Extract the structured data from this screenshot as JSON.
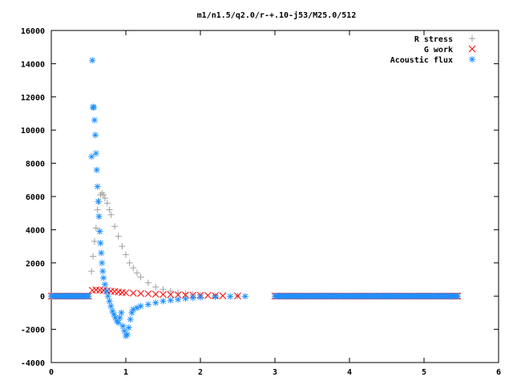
{
  "chart_data": {
    "type": "scatter",
    "title": "m1/n1.5/q2.0/r-+.10-j53/M25.0/512",
    "xlabel": "",
    "ylabel": "",
    "xlim": [
      0,
      6
    ],
    "ylim": [
      -4000,
      16000
    ],
    "x_ticks": [
      "0",
      "1",
      "2",
      "3",
      "4",
      "5",
      "6"
    ],
    "y_ticks": [
      "-4000",
      "-2000",
      "0",
      "2000",
      "4000",
      "6000",
      "8000",
      "10000",
      "12000",
      "14000",
      "16000"
    ],
    "grid": false,
    "legend_position": "top-right",
    "series": [
      {
        "name": "R stress",
        "marker": "plus",
        "color": "#a0a0a0",
        "points": [
          [
            0.0,
            0
          ],
          [
            0.1,
            0
          ],
          [
            0.2,
            0
          ],
          [
            0.3,
            0
          ],
          [
            0.4,
            0
          ],
          [
            0.5,
            0
          ],
          [
            0.54,
            1500
          ],
          [
            0.56,
            2400
          ],
          [
            0.58,
            3300
          ],
          [
            0.6,
            4100
          ],
          [
            0.62,
            5200
          ],
          [
            0.64,
            5700
          ],
          [
            0.66,
            6100
          ],
          [
            0.68,
            6200
          ],
          [
            0.7,
            6100
          ],
          [
            0.72,
            5900
          ],
          [
            0.75,
            5600
          ],
          [
            0.78,
            5200
          ],
          [
            0.8,
            4900
          ],
          [
            0.85,
            4200
          ],
          [
            0.9,
            3600
          ],
          [
            0.95,
            3000
          ],
          [
            1.0,
            2500
          ],
          [
            1.05,
            2000
          ],
          [
            1.1,
            1700
          ],
          [
            1.15,
            1400
          ],
          [
            1.2,
            1150
          ],
          [
            1.3,
            800
          ],
          [
            1.4,
            550
          ],
          [
            1.5,
            400
          ],
          [
            1.6,
            300
          ],
          [
            1.7,
            200
          ],
          [
            1.8,
            150
          ],
          [
            1.9,
            100
          ],
          [
            2.0,
            70
          ],
          [
            2.2,
            30
          ],
          [
            2.5,
            10
          ],
          [
            3.0,
            0
          ],
          [
            3.5,
            0
          ],
          [
            4.0,
            0
          ],
          [
            4.5,
            0
          ],
          [
            5.0,
            0
          ],
          [
            5.45,
            0
          ]
        ]
      },
      {
        "name": "G work",
        "marker": "cross",
        "color": "#ff0000",
        "points": [
          [
            0.0,
            0
          ],
          [
            0.2,
            0
          ],
          [
            0.4,
            0
          ],
          [
            0.5,
            0
          ],
          [
            0.55,
            350
          ],
          [
            0.6,
            380
          ],
          [
            0.65,
            360
          ],
          [
            0.7,
            340
          ],
          [
            0.75,
            320
          ],
          [
            0.8,
            300
          ],
          [
            0.85,
            280
          ],
          [
            0.9,
            250
          ],
          [
            0.95,
            220
          ],
          [
            1.0,
            200
          ],
          [
            1.1,
            180
          ],
          [
            1.2,
            160
          ],
          [
            1.3,
            140
          ],
          [
            1.4,
            120
          ],
          [
            1.5,
            100
          ],
          [
            1.6,
            90
          ],
          [
            1.7,
            80
          ],
          [
            1.8,
            70
          ],
          [
            1.9,
            60
          ],
          [
            2.0,
            50
          ],
          [
            2.1,
            40
          ],
          [
            2.2,
            30
          ],
          [
            2.3,
            20
          ],
          [
            2.5,
            10
          ],
          [
            3.0,
            0
          ],
          [
            3.5,
            0
          ],
          [
            4.0,
            0
          ],
          [
            4.5,
            0
          ],
          [
            5.0,
            0
          ],
          [
            5.45,
            0
          ]
        ]
      },
      {
        "name": "Acoustic flux",
        "marker": "star",
        "color": "#1e90ff",
        "points": [
          [
            0.0,
            0
          ],
          [
            0.1,
            0
          ],
          [
            0.2,
            0
          ],
          [
            0.3,
            0
          ],
          [
            0.4,
            0
          ],
          [
            0.5,
            0
          ],
          [
            0.54,
            8400
          ],
          [
            0.55,
            14200
          ],
          [
            0.56,
            11400
          ],
          [
            0.57,
            11350
          ],
          [
            0.58,
            10600
          ],
          [
            0.59,
            9700
          ],
          [
            0.6,
            8600
          ],
          [
            0.61,
            7600
          ],
          [
            0.62,
            6600
          ],
          [
            0.63,
            5700
          ],
          [
            0.64,
            4800
          ],
          [
            0.65,
            3900
          ],
          [
            0.66,
            3200
          ],
          [
            0.67,
            2600
          ],
          [
            0.68,
            2000
          ],
          [
            0.69,
            1500
          ],
          [
            0.7,
            1100
          ],
          [
            0.72,
            700
          ],
          [
            0.74,
            300
          ],
          [
            0.76,
            0
          ],
          [
            0.78,
            -300
          ],
          [
            0.8,
            -600
          ],
          [
            0.82,
            -900
          ],
          [
            0.84,
            -1100
          ],
          [
            0.86,
            -1300
          ],
          [
            0.88,
            -1500
          ],
          [
            0.9,
            -1600
          ],
          [
            0.92,
            -1300
          ],
          [
            0.94,
            -1000
          ],
          [
            0.96,
            -1800
          ],
          [
            0.98,
            -2100
          ],
          [
            1.0,
            -2400
          ],
          [
            1.02,
            -2300
          ],
          [
            1.04,
            -1900
          ],
          [
            1.06,
            -1400
          ],
          [
            1.08,
            -1000
          ],
          [
            1.1,
            -800
          ],
          [
            1.15,
            -700
          ],
          [
            1.2,
            -600
          ],
          [
            1.3,
            -500
          ],
          [
            1.4,
            -400
          ],
          [
            1.5,
            -300
          ],
          [
            1.6,
            -250
          ],
          [
            1.7,
            -200
          ],
          [
            1.8,
            -150
          ],
          [
            1.9,
            -100
          ],
          [
            2.0,
            -70
          ],
          [
            2.2,
            -40
          ],
          [
            2.4,
            -20
          ],
          [
            2.6,
            -10
          ],
          [
            3.0,
            0
          ],
          [
            3.5,
            0
          ],
          [
            4.0,
            0
          ],
          [
            4.5,
            0
          ],
          [
            5.0,
            0
          ],
          [
            5.45,
            0
          ]
        ]
      }
    ]
  }
}
